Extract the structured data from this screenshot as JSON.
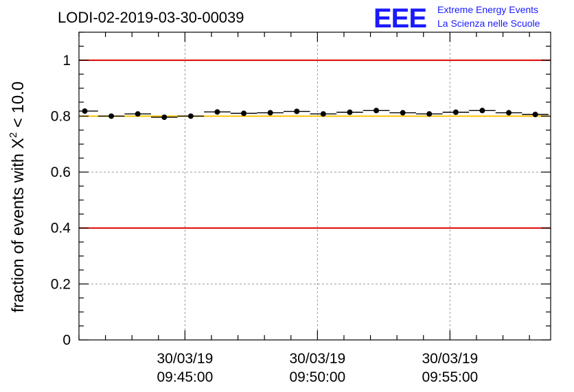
{
  "chart_data": {
    "type": "scatter",
    "title": "LODI-02-2019-03-30-00039",
    "ylabel_main": "fraction of events with ",
    "ylabel_symbol": "X",
    "ylabel_exp": "2",
    "ylabel_tail": " < 10.0",
    "ylim": [
      0,
      1.1
    ],
    "y_ticks": [
      {
        "value": 0,
        "label": "0"
      },
      {
        "value": 0.2,
        "label": "0.2"
      },
      {
        "value": 0.4,
        "label": "0.4"
      },
      {
        "value": 0.6,
        "label": "0.6"
      },
      {
        "value": 0.8,
        "label": "0.8"
      },
      {
        "value": 1,
        "label": "1"
      }
    ],
    "x_range_minutes": [
      0,
      17.8
    ],
    "x_ticks": [
      {
        "minute": 4.0,
        "date": "30/03/19",
        "time": "09:45:00"
      },
      {
        "minute": 9.0,
        "date": "30/03/19",
        "time": "09:50:00"
      },
      {
        "minute": 14.0,
        "date": "30/03/19",
        "time": "09:55:00"
      }
    ],
    "bin_width_minutes": 1.0,
    "x_centers": [
      0.22,
      1.22,
      2.22,
      3.22,
      4.22,
      5.22,
      6.22,
      7.22,
      8.22,
      9.22,
      10.22,
      11.22,
      12.22,
      13.22,
      14.22,
      15.22,
      16.22,
      17.22
    ],
    "values": [
      0.818,
      0.8,
      0.808,
      0.796,
      0.8,
      0.815,
      0.81,
      0.812,
      0.817,
      0.808,
      0.814,
      0.82,
      0.812,
      0.808,
      0.814,
      0.82,
      0.812,
      0.806
    ],
    "reference_lines": [
      {
        "value": 1.0,
        "color": "#e00000"
      },
      {
        "value": 0.4,
        "color": "#e00000"
      },
      {
        "value": 0.8,
        "color": "#ffc000"
      }
    ],
    "grid": true
  },
  "logo": {
    "mark": "EEE",
    "line1": "Extreme Energy Events",
    "line2": "La Scienza nelle Scuole",
    "color": "#1a1aff"
  }
}
